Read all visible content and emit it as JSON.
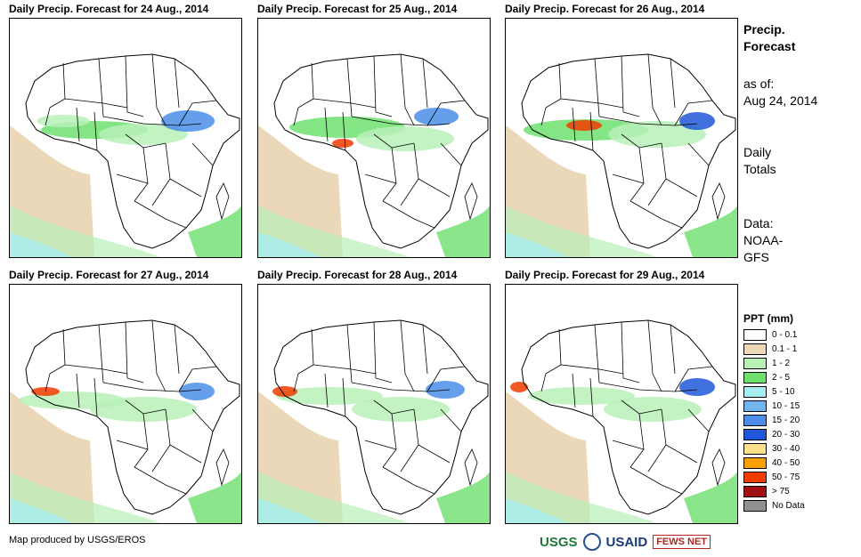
{
  "panels": [
    {
      "title": "Daily Precip. Forecast for 24 Aug., 2014",
      "day": 0
    },
    {
      "title": "Daily Precip. Forecast for 25 Aug., 2014",
      "day": 1
    },
    {
      "title": "Daily Precip. Forecast for 26 Aug., 2014",
      "day": 2
    },
    {
      "title": "Daily Precip. Forecast for 27 Aug., 2014",
      "day": 3
    },
    {
      "title": "Daily Precip. Forecast for 28 Aug., 2014",
      "day": 4
    },
    {
      "title": "Daily Precip. Forecast for 29 Aug., 2014",
      "day": 5
    }
  ],
  "sidebar": {
    "title_line1": "Precip.",
    "title_line2": "Forecast",
    "asof_line1": "as of:",
    "asof_line2": "Aug 24, 2014",
    "totals_line1": "Daily",
    "totals_line2": "Totals",
    "data_line1": "Data:",
    "data_line2": "NOAA-",
    "data_line3": "GFS"
  },
  "legend": {
    "title": "PPT (mm)",
    "items": [
      {
        "label": "0 - 0.1",
        "color": "#ffffff"
      },
      {
        "label": "0.1 - 1",
        "color": "#ead8b8"
      },
      {
        "label": "1 - 2",
        "color": "#b8f0b8"
      },
      {
        "label": "2 - 5",
        "color": "#6ee06e"
      },
      {
        "label": "5 - 10",
        "color": "#a8eef0"
      },
      {
        "label": "10 - 15",
        "color": "#70b4f0"
      },
      {
        "label": "15 - 20",
        "color": "#4a8ee8"
      },
      {
        "label": "20 - 30",
        "color": "#1f58d8"
      },
      {
        "label": "30 - 40",
        "color": "#fce08a"
      },
      {
        "label": "40 - 50",
        "color": "#f5a000"
      },
      {
        "label": "50 - 75",
        "color": "#f03c00"
      },
      {
        "label": "> 75",
        "color": "#a01010"
      },
      {
        "label": "No Data",
        "color": "#909090"
      }
    ]
  },
  "footer": {
    "credit": "Map produced by USGS/EROS",
    "logo_usgs": "USGS",
    "logo_usaid": "USAID",
    "logo_fews": "FEWS NET"
  }
}
